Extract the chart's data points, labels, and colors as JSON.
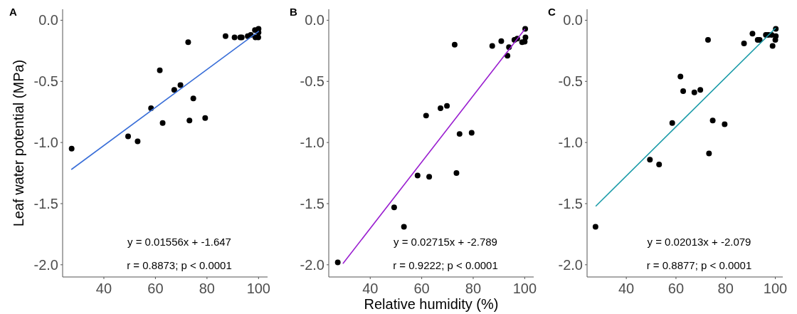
{
  "chart_data": [
    {
      "type": "scatter",
      "title": "A",
      "ylabel": "Leaf water potential (MPa)",
      "xlim": [
        24,
        103.5
      ],
      "ylim": [
        -2.1,
        0.09
      ],
      "xticks": [
        40,
        60,
        80,
        100
      ],
      "yticks": [
        {
          "value": 0,
          "label": "0.0"
        },
        {
          "value": -0.5,
          "label": "-0.5"
        },
        {
          "value": -1,
          "label": "-1.0"
        },
        {
          "value": -1.5,
          "label": "-1.5"
        },
        {
          "value": -2,
          "label": "-2.0"
        }
      ],
      "annotations": [
        "y = 0.01556x + -1.647",
        "r = 0.8873; p < 0.0001"
      ],
      "series": [
        {
          "type": "scatter",
          "marker": "circle",
          "color": "#000000",
          "x": [
            27.5,
            49.4,
            53.1,
            58.3,
            61.7,
            62.8,
            67.3,
            69.7,
            72.7,
            73.2,
            74.7,
            79.3,
            87.2,
            90.7,
            92.9,
            93.5,
            95.8,
            97.0,
            98.6,
            100,
            100,
            98.8,
            99.9
          ],
          "values": [
            -1.05,
            -0.95,
            -0.99,
            -0.72,
            -0.41,
            -0.84,
            -0.57,
            -0.53,
            -0.18,
            -0.82,
            -0.64,
            -0.8,
            -0.13,
            -0.14,
            -0.14,
            -0.14,
            -0.13,
            -0.12,
            -0.08,
            -0.07,
            -0.1,
            -0.14,
            -0.14
          ]
        },
        {
          "type": "line",
          "color": "#3a6fd8",
          "x": [
            27.5,
            100
          ],
          "values": [
            -1.219,
            -0.091
          ]
        }
      ]
    },
    {
      "type": "scatter",
      "title": "B",
      "xlabel": "Relative humidity (%)",
      "xlim": [
        23.9,
        103.5
      ],
      "ylim": [
        -2.1,
        0.09
      ],
      "xticks": [
        40,
        60,
        80,
        100
      ],
      "yticks": [
        {
          "value": 0,
          "label": "0.0"
        },
        {
          "value": -0.5,
          "label": "-0.5"
        },
        {
          "value": -1,
          "label": "-1.0"
        },
        {
          "value": -1.5,
          "label": "-1.5"
        },
        {
          "value": -2,
          "label": "-2.0"
        }
      ],
      "annotations": [
        "y = 0.02715x + -2.789",
        "r = 0.9222; p < 0.0001"
      ],
      "series": [
        {
          "type": "scatter",
          "marker": "circle",
          "color": "#000000",
          "x": [
            27.4,
            49.3,
            53.1,
            58.4,
            61.7,
            62.9,
            67.3,
            69.8,
            72.8,
            73.5,
            74.7,
            79.4,
            87.4,
            90.9,
            93.3,
            93.9,
            96.0,
            97.1,
            99.0,
            100.2,
            100.3,
            100
          ],
          "values": [
            -1.98,
            -1.53,
            -1.69,
            -1.27,
            -0.78,
            -1.28,
            -0.72,
            -0.7,
            -0.2,
            -1.25,
            -0.93,
            -0.92,
            -0.21,
            -0.17,
            -0.29,
            -0.22,
            -0.16,
            -0.15,
            -0.18,
            -0.07,
            -0.14,
            -0.175
          ]
        },
        {
          "type": "line",
          "color": "#9a1fd0",
          "x": [
            29.5,
            100
          ],
          "values": [
            -1.988,
            -0.074
          ]
        }
      ]
    },
    {
      "type": "scatter",
      "title": "C",
      "xlim": [
        24.2,
        103
      ],
      "ylim": [
        -2.1,
        0.09
      ],
      "xticks": [
        40,
        60,
        80,
        100
      ],
      "yticks": [
        {
          "value": 0,
          "label": "0.0"
        },
        {
          "value": -0.5,
          "label": "-0.5"
        },
        {
          "value": -1,
          "label": "-1.0"
        },
        {
          "value": -1.5,
          "label": "-1.5"
        },
        {
          "value": -2,
          "label": "-2.0"
        }
      ],
      "annotations": [
        "y = 0.02013x + -2.079",
        "r = 0.8877; p < 0.0001"
      ],
      "series": [
        {
          "type": "scatter",
          "marker": "circle",
          "color": "#000000",
          "x": [
            27.6,
            49.5,
            53.2,
            58.5,
            61.8,
            62.9,
            67.4,
            69.8,
            72.9,
            73.3,
            74.8,
            79.6,
            87.4,
            90.8,
            92.9,
            93.7,
            96.2,
            97.2,
            98.5,
            98.9,
            100.2,
            100.2,
            100
          ],
          "values": [
            -1.69,
            -1.14,
            -1.18,
            -0.84,
            -0.46,
            -0.58,
            -0.59,
            -0.57,
            -0.16,
            -1.09,
            -0.82,
            -0.85,
            -0.19,
            -0.11,
            -0.16,
            -0.16,
            -0.12,
            -0.12,
            -0.12,
            -0.21,
            -0.07,
            -0.13,
            -0.16
          ]
        },
        {
          "type": "line",
          "color": "#1a9ba8",
          "x": [
            27.8,
            100
          ],
          "values": [
            -1.519,
            -0.066
          ]
        }
      ]
    }
  ]
}
